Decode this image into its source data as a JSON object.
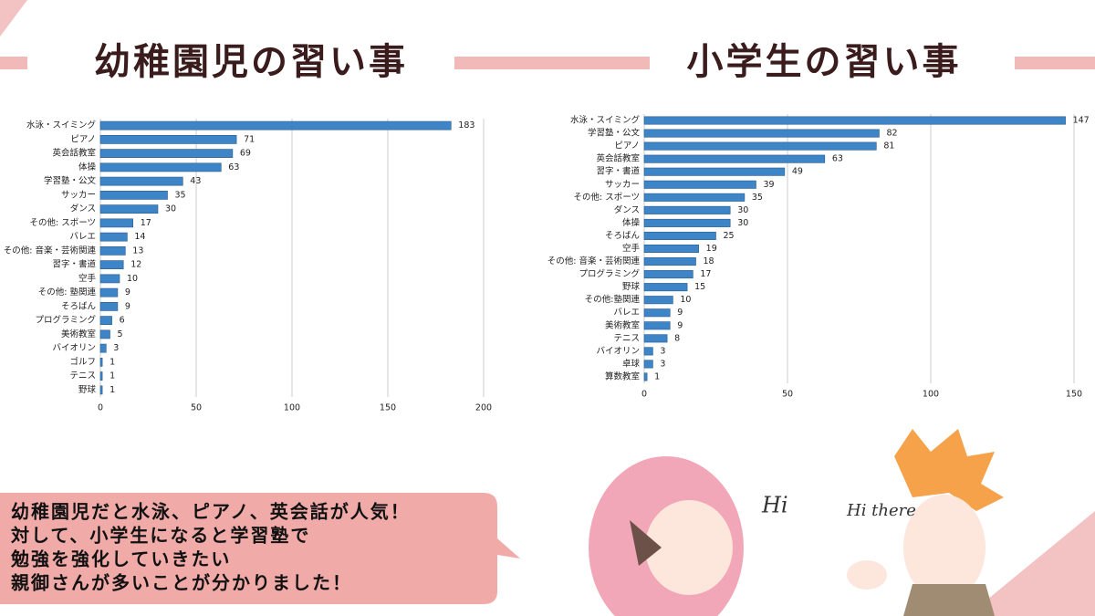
{
  "chart_data": [
    {
      "type": "bar",
      "orientation": "horizontal",
      "title": "幼稚園児の習い事",
      "categories": [
        "水泳・スイミング",
        "ピアノ",
        "英会話教室",
        "体操",
        "学習塾・公文",
        "サッカー",
        "ダンス",
        "その他: スポーツ",
        "バレエ",
        "その他: 音楽・芸術関連",
        "習字・書道",
        "空手",
        "その他: 塾関連",
        "そろばん",
        "プログラミング",
        "美術教室",
        "バイオリン",
        "ゴルフ",
        "テニス",
        "野球"
      ],
      "values": [
        183,
        71,
        69,
        63,
        43,
        35,
        30,
        17,
        14,
        13,
        12,
        10,
        9,
        9,
        6,
        5,
        3,
        1,
        1,
        1
      ],
      "color": "#3d85c6",
      "xlim": [
        0,
        200
      ],
      "xticks": [
        0,
        50,
        100,
        150,
        200
      ],
      "grid": true
    },
    {
      "type": "bar",
      "orientation": "horizontal",
      "title": "小学生の習い事",
      "categories": [
        "水泳・スイミング",
        "学習塾・公文",
        "ピアノ",
        "英会話教室",
        "習字・書道",
        "サッカー",
        "その他: スポーツ",
        "ダンス",
        "体操",
        "そろばん",
        "空手",
        "その他: 音楽・芸術関連",
        "プログラミング",
        "野球",
        "その他:塾関連",
        "バレエ",
        "美術教室",
        "テニス",
        "バイオリン",
        "卓球",
        "算数教室"
      ],
      "values": [
        147,
        82,
        81,
        63,
        49,
        39,
        35,
        30,
        30,
        25,
        19,
        18,
        17,
        15,
        10,
        9,
        9,
        8,
        3,
        3,
        1
      ],
      "color": "#3d85c6",
      "xlim": [
        0,
        150
      ],
      "xticks": [
        0,
        50,
        100,
        150
      ],
      "grid": true
    }
  ],
  "callout": [
    "幼稚園児だと水泳、ピアノ、英会話が人気！",
    "対して、小学生になると学習塾で",
    "勉強を強化していきたい",
    "親御さんが多いことが分かりました！"
  ],
  "greetings": [
    "Hi",
    "Hi there"
  ]
}
